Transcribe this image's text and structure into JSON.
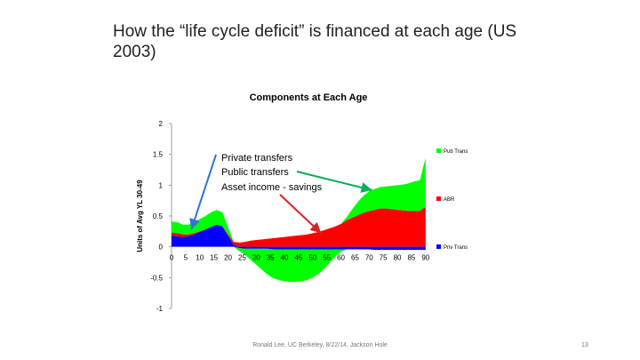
{
  "slide": {
    "title": "How the “life cycle deficit” is financed at each age (US 2003)",
    "footer": "Ronald Lee, UC Berkeley, 8/22/14, Jackson Hole",
    "page_number": "13"
  },
  "chart_data": {
    "type": "area",
    "title": "Components at Each Age",
    "ylabel": "Units of Avg YL 30-49",
    "xlabel": "",
    "ylim": [
      -1,
      2
    ],
    "yticks": [
      -1,
      -0.5,
      0,
      0.5,
      1,
      1.5,
      2
    ],
    "xticks": [
      0,
      5,
      10,
      15,
      20,
      25,
      30,
      35,
      40,
      45,
      50,
      55,
      60,
      65,
      70,
      75,
      80,
      85,
      90
    ],
    "x_ages": [
      0,
      2,
      4,
      6,
      8,
      10,
      12,
      14,
      16,
      18,
      20,
      22,
      24,
      26,
      28,
      30,
      32,
      34,
      36,
      38,
      40,
      42,
      44,
      46,
      48,
      50,
      52,
      54,
      56,
      58,
      60,
      62,
      64,
      66,
      68,
      70,
      72,
      74,
      76,
      78,
      80,
      82,
      84,
      86,
      88,
      89,
      90
    ],
    "legend_position": "right",
    "series": [
      {
        "name": "Pub Trans",
        "color": "#00ff00",
        "values": [
          0.18,
          0.18,
          0.16,
          0.16,
          0.18,
          0.2,
          0.22,
          0.24,
          0.24,
          0.23,
          0.12,
          0.0,
          -0.05,
          -0.1,
          -0.18,
          -0.26,
          -0.34,
          -0.42,
          -0.47,
          -0.5,
          -0.52,
          -0.53,
          -0.53,
          -0.52,
          -0.5,
          -0.46,
          -0.4,
          -0.32,
          -0.22,
          -0.12,
          -0.04,
          0.05,
          0.14,
          0.22,
          0.28,
          0.32,
          0.34,
          0.35,
          0.36,
          0.38,
          0.4,
          0.42,
          0.45,
          0.48,
          0.5,
          0.65,
          0.8
        ]
      },
      {
        "name": "ABR",
        "color": "#ff0000",
        "values": [
          0.05,
          0.05,
          0.04,
          0.03,
          0.02,
          0.01,
          0.0,
          0.0,
          0.0,
          0.0,
          0.02,
          0.05,
          0.07,
          0.08,
          0.1,
          0.11,
          0.12,
          0.13,
          0.14,
          0.15,
          0.16,
          0.17,
          0.18,
          0.19,
          0.2,
          0.22,
          0.24,
          0.27,
          0.3,
          0.33,
          0.37,
          0.43,
          0.47,
          0.51,
          0.55,
          0.58,
          0.6,
          0.62,
          0.62,
          0.61,
          0.6,
          0.59,
          0.58,
          0.58,
          0.58,
          0.62,
          0.64
        ]
      },
      {
        "name": "Priv Trans",
        "color": "#0000ff",
        "values": [
          0.18,
          0.17,
          0.16,
          0.17,
          0.2,
          0.24,
          0.28,
          0.32,
          0.36,
          0.33,
          0.18,
          0.03,
          -0.02,
          -0.03,
          -0.03,
          -0.03,
          -0.03,
          -0.03,
          -0.04,
          -0.04,
          -0.04,
          -0.04,
          -0.04,
          -0.04,
          -0.04,
          -0.04,
          -0.04,
          -0.04,
          -0.04,
          -0.04,
          -0.04,
          -0.04,
          -0.04,
          -0.04,
          -0.04,
          -0.04,
          -0.05,
          -0.05,
          -0.05,
          -0.05,
          -0.05,
          -0.05,
          -0.05,
          -0.05,
          -0.05,
          -0.05,
          -0.05
        ]
      }
    ],
    "annotations": [
      {
        "text": "Private transfers",
        "points_to": {
          "x": 7,
          "y": 0.28
        }
      },
      {
        "text": "Public transfers",
        "points_to": {
          "x": 71,
          "y": 0.92
        }
      },
      {
        "text": "Asset income - savings",
        "points_to": {
          "x": 53,
          "y": 0.22
        }
      }
    ]
  }
}
